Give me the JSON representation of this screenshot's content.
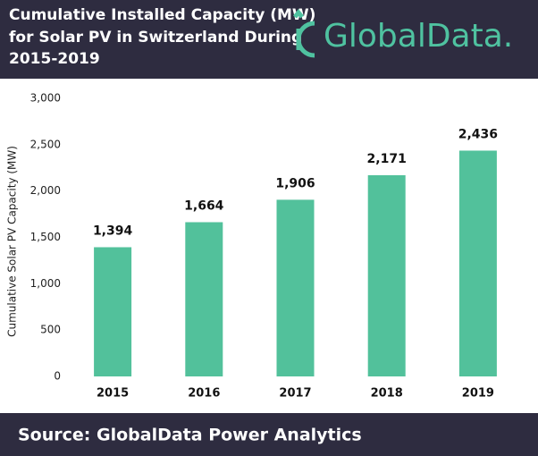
{
  "chart_data": {
    "type": "bar",
    "title": [
      "Cumulative Installed Capacity (MW)",
      "for Solar PV in Switzerland During",
      "2015-2019"
    ],
    "logo": "GlobalData.",
    "y_label": "Cumulative  Solar PV  Capacity (MW)",
    "categories": [
      "2015",
      "2016",
      "2017",
      "2018",
      "2019"
    ],
    "values": [
      1394,
      1664,
      1906,
      2171,
      2436
    ],
    "value_labels": [
      "1,394",
      "1,664",
      "1,906",
      "2,171",
      "2,436"
    ],
    "color": "#52c19b",
    "ylim": [
      0,
      3000
    ],
    "yticks": [
      0,
      500,
      {
        "value": 1000,
        "label": "1,000"
      },
      {
        "value": 1500,
        "label": "1,500"
      },
      {
        "value": 2000,
        "label": "2,000"
      },
      {
        "value": 2500,
        "label": "2,500"
      },
      {
        "value": 3000,
        "label": "3,000"
      }
    ],
    "grid": false,
    "source": "Source: GlobalData Power Analytics"
  }
}
